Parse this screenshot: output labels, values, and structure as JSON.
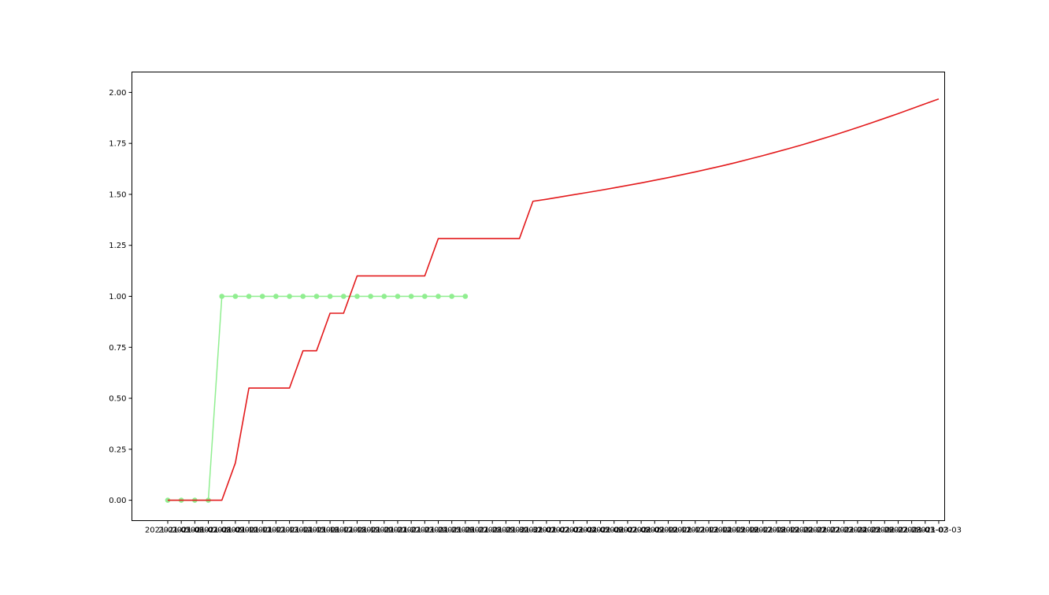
{
  "chart_data": {
    "type": "line",
    "title": "",
    "xlabel": "",
    "ylabel": "",
    "grid": false,
    "legend": "none",
    "ylim": [
      -0.1,
      2.1
    ],
    "y_ticks": [
      "0.00",
      "0.25",
      "0.50",
      "0.75",
      "1.00",
      "1.25",
      "1.50",
      "1.75",
      "2.00"
    ],
    "x_ticks": [
      "2021-01-05",
      "2021-01-06",
      "2021-01-07",
      "2021-01-08",
      "2021-01-09",
      "2021-01-10",
      "2021-01-11",
      "2021-01-12",
      "2021-01-13",
      "2021-01-14",
      "2021-01-15",
      "2021-01-16",
      "2021-01-17",
      "2021-01-18",
      "2021-01-19",
      "2021-01-20",
      "2021-01-21",
      "2021-01-22",
      "2021-01-23",
      "2021-01-24",
      "2021-01-25",
      "2021-01-26",
      "2021-01-27",
      "2021-01-28",
      "2021-01-29",
      "2021-01-30",
      "2021-01-31",
      "2021-02-01",
      "2021-02-02",
      "2021-02-03",
      "2021-02-04",
      "2021-02-05",
      "2021-02-06",
      "2021-02-07",
      "2021-02-08",
      "2021-02-09",
      "2021-02-10",
      "2021-02-11",
      "2021-02-12",
      "2021-02-13",
      "2021-02-14",
      "2021-02-15",
      "2021-02-16",
      "2021-02-17",
      "2021-02-18",
      "2021-02-19",
      "2021-02-20",
      "2021-02-21",
      "2021-02-22",
      "2021-02-23",
      "2021-02-24",
      "2021-02-25",
      "2021-02-26",
      "2021-02-27",
      "2021-02-28",
      "2021-03-01",
      "2021-03-02",
      "2021-03-03"
    ],
    "series": [
      {
        "color": "#90ee90",
        "marker": "circle",
        "x": [
          "2021-01-05",
          "2021-01-06",
          "2021-01-07",
          "2021-01-08",
          "2021-01-09",
          "2021-01-10",
          "2021-01-11",
          "2021-01-12",
          "2021-01-13",
          "2021-01-14",
          "2021-01-15",
          "2021-01-16",
          "2021-01-17",
          "2021-01-18",
          "2021-01-19",
          "2021-01-20",
          "2021-01-21",
          "2021-01-22",
          "2021-01-23",
          "2021-01-24",
          "2021-01-25",
          "2021-01-26",
          "2021-01-27"
        ],
        "values": [
          0,
          0,
          0,
          0,
          1,
          1,
          1,
          1,
          1,
          1,
          1,
          1,
          1,
          1,
          1,
          1,
          1,
          1,
          1,
          1,
          1,
          1,
          1
        ]
      },
      {
        "color": "#e31a1c",
        "marker": "none",
        "x": [
          "2021-01-05",
          "2021-01-06",
          "2021-01-07",
          "2021-01-08",
          "2021-01-09",
          "2021-01-10",
          "2021-01-11",
          "2021-01-12",
          "2021-01-13",
          "2021-01-14",
          "2021-01-15",
          "2021-01-16",
          "2021-01-17",
          "2021-01-18",
          "2021-01-19",
          "2021-01-20",
          "2021-01-21",
          "2021-01-22",
          "2021-01-23",
          "2021-01-24",
          "2021-01-25",
          "2021-01-26",
          "2021-01-27",
          "2021-01-28",
          "2021-01-29",
          "2021-01-30",
          "2021-01-31",
          "2021-02-01",
          "2021-02-02",
          "2021-02-03",
          "2021-02-04",
          "2021-02-05",
          "2021-02-06",
          "2021-02-07",
          "2021-02-08",
          "2021-02-09",
          "2021-02-10",
          "2021-02-11",
          "2021-02-12",
          "2021-02-13",
          "2021-02-14",
          "2021-02-15",
          "2021-02-16",
          "2021-02-17",
          "2021-02-18",
          "2021-02-19",
          "2021-02-20",
          "2021-02-21",
          "2021-02-22",
          "2021-02-23",
          "2021-02-24",
          "2021-02-25",
          "2021-02-26",
          "2021-02-27",
          "2021-02-28",
          "2021-03-01",
          "2021-03-02",
          "2021-03-03"
        ],
        "values": [
          0,
          0,
          0,
          0,
          0,
          0.183,
          0.55,
          0.55,
          0.55,
          0.55,
          0.733,
          0.733,
          0.917,
          0.917,
          1.1,
          1.1,
          1.1,
          1.1,
          1.1,
          1.1,
          1.283,
          1.283,
          1.283,
          1.283,
          1.283,
          1.283,
          1.283,
          1.466,
          1.476,
          1.487,
          1.498,
          1.509,
          1.52,
          1.532,
          1.544,
          1.556,
          1.569,
          1.582,
          1.596,
          1.61,
          1.625,
          1.64,
          1.656,
          1.673,
          1.69,
          1.708,
          1.726,
          1.745,
          1.765,
          1.785,
          1.806,
          1.828,
          1.85,
          1.873,
          1.896,
          1.92,
          1.944,
          1.968
        ]
      }
    ]
  }
}
